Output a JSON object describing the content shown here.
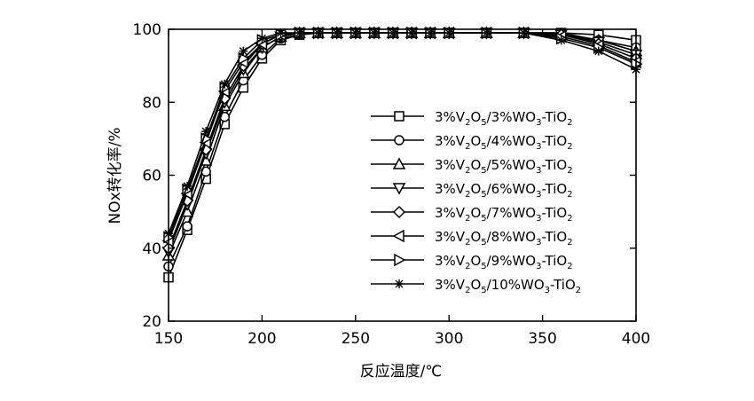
{
  "chart_data": {
    "type": "line",
    "xlabel": "反应温度/℃",
    "ylabel": "NOx转化率/%",
    "xlim": [
      150,
      400
    ],
    "ylim": [
      20,
      100
    ],
    "xticks": [
      150,
      200,
      250,
      300,
      350,
      400
    ],
    "yticks": [
      20,
      40,
      60,
      80,
      100
    ],
    "grid": false,
    "legend_position": "center-right",
    "x": [
      150,
      160,
      170,
      180,
      190,
      200,
      210,
      220,
      230,
      240,
      250,
      260,
      270,
      280,
      290,
      300,
      320,
      340,
      360,
      380,
      400
    ],
    "series": [
      {
        "name": "3%V2O5/3%WO3-TiO2",
        "legend": [
          "3%V",
          "2",
          "O",
          "5",
          "/3%WO",
          "3",
          "-TiO",
          "2"
        ],
        "marker": "square",
        "values": [
          32,
          45,
          59,
          74,
          84,
          92,
          97,
          98.5,
          99,
          99,
          99,
          99,
          99,
          99,
          99,
          99,
          99,
          99,
          99,
          98.5,
          97
        ]
      },
      {
        "name": "3%V2O5/4%WO3-TiO2",
        "legend": [
          "3%V",
          "2",
          "O",
          "5",
          "/4%WO",
          "3",
          "-TiO",
          "2"
        ],
        "marker": "circle",
        "values": [
          35,
          46,
          61,
          76,
          86,
          93,
          97.5,
          98.5,
          99,
          99,
          99,
          99,
          99,
          99,
          99,
          99,
          99,
          99,
          99,
          97,
          95
        ]
      },
      {
        "name": "3%V2O5/5%WO3-TiO2",
        "legend": [
          "3%V",
          "2",
          "O",
          "5",
          "/5%WO",
          "3",
          "-TiO",
          "2"
        ],
        "marker": "triangle-up",
        "values": [
          38,
          50,
          64,
          79,
          88,
          95,
          98,
          99,
          99,
          99,
          99,
          99,
          99,
          99,
          99,
          99,
          99,
          99,
          98.5,
          97,
          94
        ]
      },
      {
        "name": "3%V2O5/6%WO3-TiO2",
        "legend": [
          "3%V",
          "2",
          "O",
          "5",
          "/6%WO",
          "3",
          "-TiO",
          "2"
        ],
        "marker": "triangle-down",
        "values": [
          39,
          52,
          66,
          80,
          89,
          95,
          98,
          99,
          99,
          99,
          99,
          99,
          99,
          99,
          99,
          99,
          99,
          99,
          98.5,
          96.5,
          93
        ]
      },
      {
        "name": "3%V2O5/7%WO3-TiO2",
        "legend": [
          "3%V",
          "2",
          "O",
          "5",
          "/7%WO",
          "3",
          "-TiO",
          "2"
        ],
        "marker": "diamond",
        "values": [
          40,
          53,
          67,
          81,
          90,
          96,
          98.5,
          99,
          99,
          99,
          99,
          99,
          99,
          99,
          99,
          99,
          99,
          99,
          98.5,
          96,
          92
        ]
      },
      {
        "name": "3%V2O5/8%WO3-TiO2",
        "legend": [
          "3%V",
          "2",
          "O",
          "5",
          "/8%WO",
          "3",
          "-TiO",
          "2"
        ],
        "marker": "triangle-left",
        "values": [
          42,
          55,
          69,
          83,
          91,
          96,
          98.5,
          99,
          99,
          99,
          99,
          99,
          99,
          99,
          99,
          99,
          99,
          99,
          98,
          95.5,
          91
        ]
      },
      {
        "name": "3%V2O5/9%WO3-TiO2",
        "legend": [
          "3%V",
          "2",
          "O",
          "5",
          "/9%WO",
          "3",
          "-TiO",
          "2"
        ],
        "marker": "triangle-right",
        "values": [
          43,
          56,
          70,
          84,
          92,
          97,
          98.5,
          99,
          99,
          99,
          99,
          99,
          99,
          99,
          99,
          99,
          99,
          99,
          97.5,
          95,
          90.5
        ]
      },
      {
        "name": "3%V2O5/10%WO3-TiO2",
        "legend": [
          "3%V",
          "2",
          "O",
          "5",
          "/10%WO",
          "3",
          "-TiO",
          "2"
        ],
        "marker": "asterisk",
        "values": [
          44,
          57,
          72,
          85,
          94,
          97.5,
          99,
          99,
          99,
          99,
          99,
          99,
          99,
          99,
          99,
          99,
          99,
          99,
          97,
          94,
          89
        ]
      }
    ]
  }
}
